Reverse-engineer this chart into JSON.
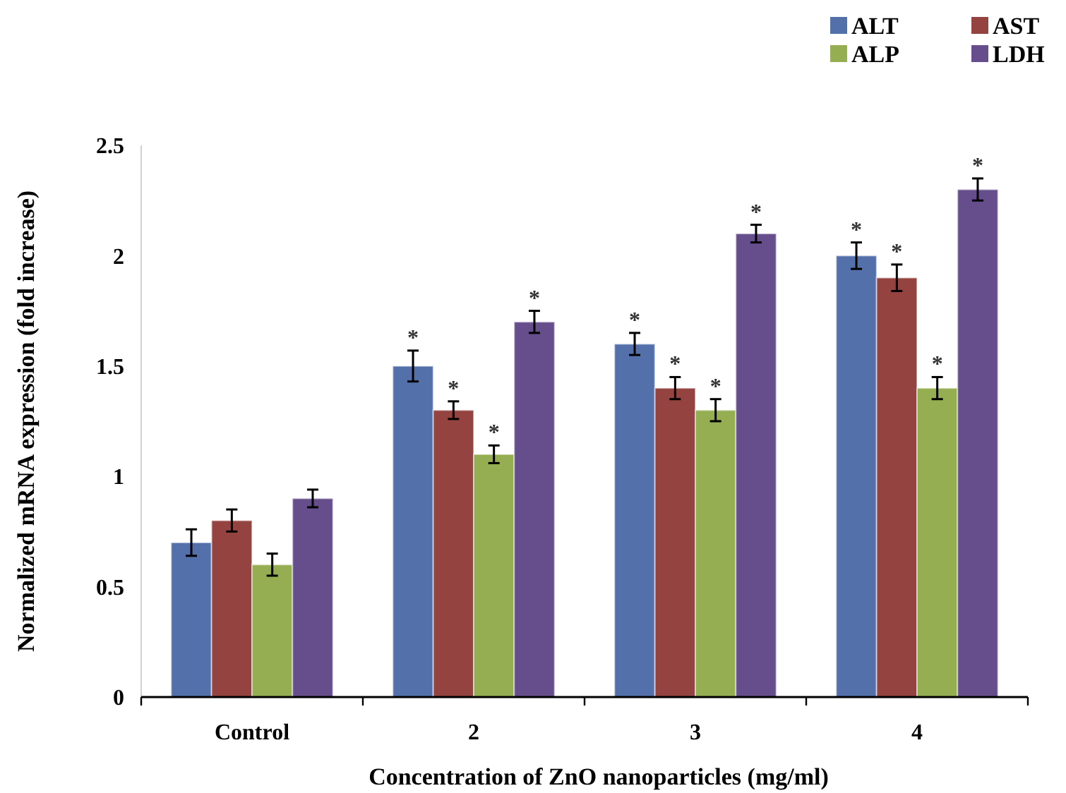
{
  "chart_data": {
    "type": "bar",
    "xlabel": "Concentration of ZnO nanoparticles (mg/ml)",
    "ylabel": "Normalized mRNA expression (fold increase)",
    "categories": [
      "Control",
      "2",
      "3",
      "4"
    ],
    "series": [
      {
        "name": "ALT",
        "color": "#5470ab",
        "values": [
          0.7,
          1.5,
          1.6,
          2.0
        ],
        "errors": [
          0.06,
          0.07,
          0.05,
          0.06
        ],
        "value_labels": [
          null,
          "*",
          "*",
          "*"
        ]
      },
      {
        "name": "AST",
        "color": "#954341",
        "values": [
          0.8,
          1.3,
          1.4,
          1.9
        ],
        "errors": [
          0.05,
          0.04,
          0.05,
          0.06
        ],
        "value_labels": [
          null,
          "*",
          "*",
          "*"
        ]
      },
      {
        "name": "ALP",
        "color": "#95ae52",
        "values": [
          0.6,
          1.1,
          1.3,
          1.4
        ],
        "errors": [
          0.05,
          0.04,
          0.05,
          0.05
        ],
        "value_labels": [
          null,
          "*",
          "*",
          "*"
        ]
      },
      {
        "name": "LDH",
        "color": "#664d8b",
        "values": [
          0.9,
          1.7,
          2.1,
          2.3
        ],
        "errors": [
          0.04,
          0.05,
          0.04,
          0.05
        ],
        "value_labels": [
          null,
          "*",
          "*",
          "*"
        ]
      }
    ],
    "ylim": [
      0,
      2.5
    ],
    "yticks": [
      0,
      0.5,
      1,
      1.5,
      2,
      2.5
    ],
    "grid": false,
    "legend": "top right"
  }
}
